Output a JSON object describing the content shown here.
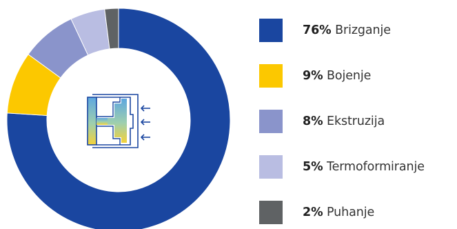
{
  "chart_data": {
    "type": "pie",
    "donut": true,
    "categories": [
      "Brizganje",
      "Bojenje",
      "Ekstruzija",
      "Termoformiranje",
      "Puhanje"
    ],
    "values": [
      76,
      9,
      8,
      5,
      2
    ],
    "value_labels": [
      "76%",
      "9%",
      "8%",
      "5%",
      "2%"
    ],
    "colors": [
      "#1a46a0",
      "#fcc800",
      "#8a94cb",
      "#b9bde2",
      "#5f6264"
    ],
    "legend_position": "right",
    "center_icon": "injection-mold-icon",
    "title": ""
  }
}
